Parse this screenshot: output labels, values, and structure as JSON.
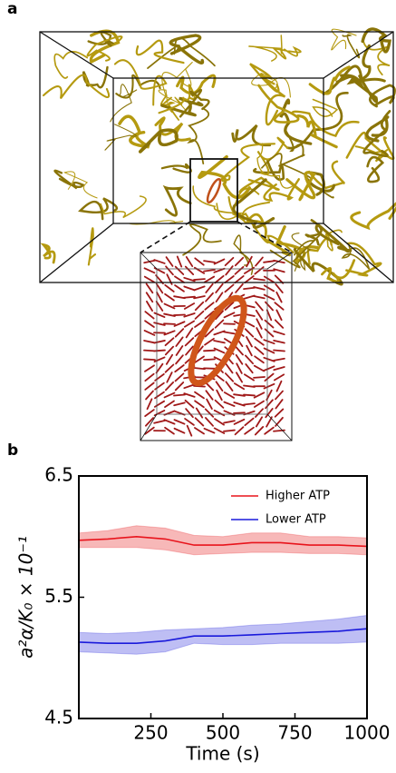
{
  "panel_labels": [
    "a",
    "b"
  ],
  "chart_data": {
    "type": "line",
    "x_label": "Time (s)",
    "y_label": "a²α/K₀ × 10⁻¹",
    "x": [
      0,
      100,
      200,
      300,
      400,
      500,
      600,
      700,
      800,
      900,
      1000
    ],
    "xlim": [
      0,
      1000
    ],
    "xticks": [
      250,
      500,
      750,
      1000
    ],
    "ylim": [
      4.5,
      6.5
    ],
    "yticks": [
      4.5,
      5.5,
      6.5
    ],
    "legend": "upper right",
    "series": [
      {
        "name": "Higher ATP",
        "color": "#e8141c",
        "band_color": "#f4a0a0",
        "values": [
          5.97,
          5.98,
          6.0,
          5.98,
          5.93,
          5.93,
          5.95,
          5.95,
          5.93,
          5.93,
          5.92
        ],
        "error": [
          0.06,
          0.07,
          0.09,
          0.09,
          0.08,
          0.07,
          0.08,
          0.08,
          0.07,
          0.07,
          0.07
        ]
      },
      {
        "name": "Lower ATP",
        "color": "#1a1adb",
        "band_color": "#a8a8f0",
        "values": [
          5.13,
          5.12,
          5.12,
          5.14,
          5.18,
          5.18,
          5.19,
          5.2,
          5.21,
          5.22,
          5.24
        ],
        "error": [
          0.08,
          0.08,
          0.09,
          0.09,
          0.06,
          0.07,
          0.08,
          0.08,
          0.09,
          0.1,
          0.11
        ]
      }
    ]
  }
}
